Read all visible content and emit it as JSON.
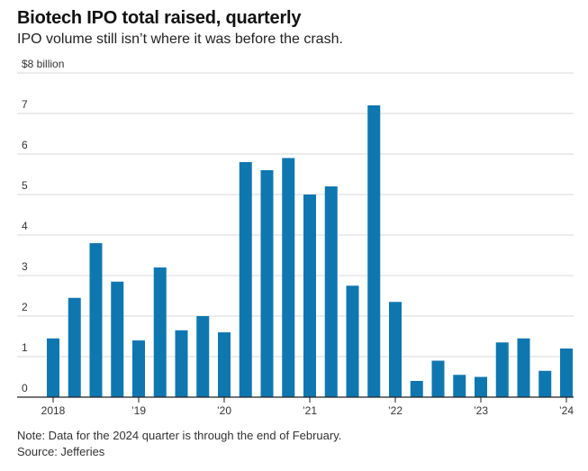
{
  "chart_data": {
    "type": "bar",
    "title": "Biotech IPO total raised, quarterly",
    "subtitle": "IPO volume still isn’t where it was before the crash.",
    "ylabel": "",
    "xlabel": "",
    "ylim": [
      0,
      8
    ],
    "y_ticks": [
      {
        "value": 0,
        "label": "0"
      },
      {
        "value": 1,
        "label": "1"
      },
      {
        "value": 2,
        "label": "2"
      },
      {
        "value": 3,
        "label": "3"
      },
      {
        "value": 4,
        "label": "4"
      },
      {
        "value": 5,
        "label": "5"
      },
      {
        "value": 6,
        "label": "6"
      },
      {
        "value": 7,
        "label": "7"
      },
      {
        "value": 8,
        "label": "$8 billion"
      }
    ],
    "categories": [
      "2018 Q1",
      "2018 Q2",
      "2018 Q3",
      "2018 Q4",
      "2019 Q1",
      "2019 Q2",
      "2019 Q3",
      "2019 Q4",
      "2020 Q1",
      "2020 Q2",
      "2020 Q3",
      "2020 Q4",
      "2021 Q1",
      "2021 Q2",
      "2021 Q3",
      "2021 Q4",
      "2022 Q1",
      "2022 Q2",
      "2022 Q3",
      "2022 Q4",
      "2023 Q1",
      "2023 Q2",
      "2023 Q3",
      "2023 Q4",
      "2024 Q1"
    ],
    "values": [
      1.45,
      2.45,
      3.8,
      2.85,
      1.4,
      3.2,
      1.65,
      2.0,
      1.6,
      5.8,
      5.6,
      5.9,
      5.0,
      5.2,
      2.75,
      7.2,
      2.35,
      0.4,
      0.9,
      0.55,
      0.5,
      1.35,
      1.45,
      0.65,
      1.2
    ],
    "x_tick_labels": [
      {
        "index": 0,
        "label": "2018"
      },
      {
        "index": 4,
        "label": "’19"
      },
      {
        "index": 8,
        "label": "’20"
      },
      {
        "index": 12,
        "label": "’21"
      },
      {
        "index": 16,
        "label": "’22"
      },
      {
        "index": 20,
        "label": "’23"
      },
      {
        "index": 24,
        "label": "’24"
      }
    ],
    "colors": {
      "bar": "#0f77b0",
      "grid": "#d9d9d9",
      "axis": "#222222"
    },
    "note": "Note: Data for the 2024 quarter is through the end of February.",
    "source": "Source: Jefferies"
  }
}
